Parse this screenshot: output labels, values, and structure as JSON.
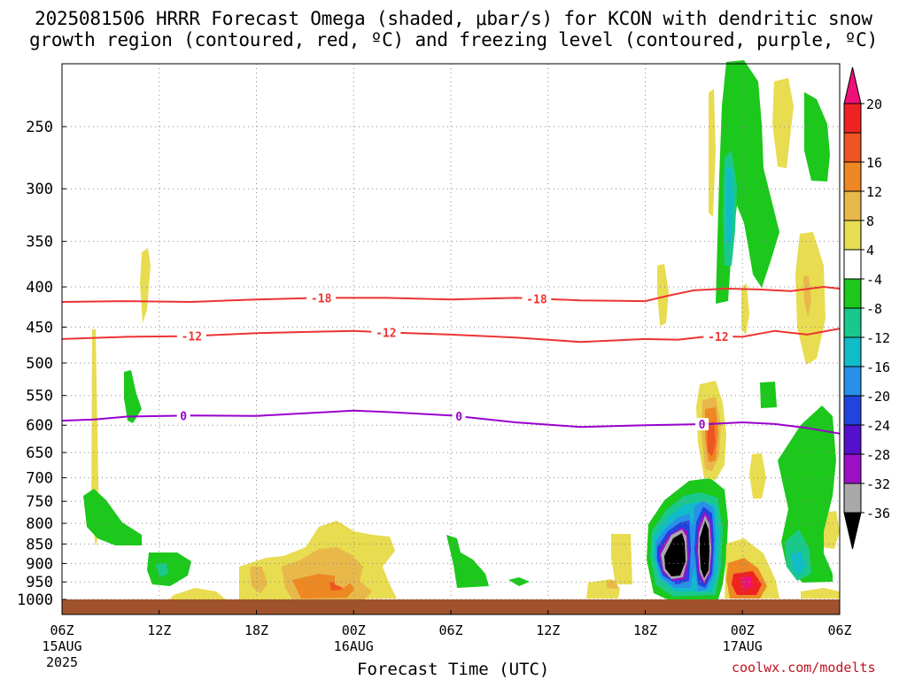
{
  "title": {
    "line1": "2025081506 HRRR Forecast Omega (shaded, μbar/s) for KCON with dendritic snow",
    "line2": "growth region (contoured, red, ºC) and freezing level (contoured, purple, ºC)"
  },
  "xaxis_title": "Forecast Time (UTC)",
  "credit": "coolwx.com/modelts",
  "colors": {
    "dendritic_contour": "#ee3333",
    "freezing_contour": "#9900cc",
    "ground": "#a0522d",
    "grid": "#888888"
  },
  "chart_data": {
    "type": "heatmap",
    "title": "2025081506 HRRR Forecast Omega (shaded, μbar/s) for KCON with dendritic snow growth region (contoured, red, ºC) and freezing level (contoured, purple, ºC)",
    "xlabel": "Forecast Time (UTC)",
    "ylabel": "",
    "x_range_hours": [
      0,
      48
    ],
    "y_range_hpa": [
      1050,
      200
    ],
    "y_scale": "log-pressure",
    "grid": true,
    "x_ticks": [
      {
        "hour": 0,
        "label": "06Z",
        "date": "15AUG",
        "year": "2025"
      },
      {
        "hour": 6,
        "label": "12Z"
      },
      {
        "hour": 12,
        "label": "18Z"
      },
      {
        "hour": 18,
        "label": "00Z",
        "date": "16AUG"
      },
      {
        "hour": 24,
        "label": "06Z"
      },
      {
        "hour": 30,
        "label": "12Z"
      },
      {
        "hour": 36,
        "label": "18Z"
      },
      {
        "hour": 42,
        "label": "00Z",
        "date": "17AUG"
      },
      {
        "hour": 48,
        "label": "06Z"
      }
    ],
    "y_ticks": [
      {
        "p": 250,
        "label": "250"
      },
      {
        "p": 300,
        "label": "300"
      },
      {
        "p": 350,
        "label": "350"
      },
      {
        "p": 400,
        "label": "400"
      },
      {
        "p": 450,
        "label": "450"
      },
      {
        "p": 500,
        "label": "500"
      },
      {
        "p": 550,
        "label": "550"
      },
      {
        "p": 600,
        "label": "600"
      },
      {
        "p": 650,
        "label": "650"
      },
      {
        "p": 700,
        "label": "700"
      },
      {
        "p": 750,
        "label": "750"
      },
      {
        "p": 800,
        "label": "800"
      },
      {
        "p": 850,
        "label": "850"
      },
      {
        "p": 900,
        "label": "900"
      },
      {
        "p": 950,
        "label": "950"
      },
      {
        "p": 1000,
        "label": "1000"
      }
    ],
    "colorbar": {
      "labels": [
        "20",
        "16",
        "12",
        "8",
        "4",
        "-4",
        "-8",
        "-12",
        "-16",
        "-20",
        "-24",
        "-28",
        "-32",
        "-36"
      ],
      "colors": [
        "#ee1177",
        "#ee2222",
        "#ee5522",
        "#ee8822",
        "#e8b84a",
        "#e8dc50",
        "#ffffff",
        "#1bc81b",
        "#1bc88c",
        "#10bcc8",
        "#2890e8",
        "#2244dd",
        "#5510cc",
        "#9c10c8",
        "#a9a9a9",
        "#000000"
      ]
    },
    "series": [
      {
        "name": "-18",
        "type": "contour",
        "x": [
          0,
          4,
          8,
          12,
          16,
          18,
          20,
          24,
          28,
          32,
          36,
          37.5,
          39,
          41,
          43,
          45,
          47,
          48
        ],
        "y": [
          418,
          417,
          418,
          415,
          413,
          413,
          413,
          415,
          413,
          416,
          417,
          410,
          404,
          402,
          403,
          405,
          400,
          402
        ],
        "labels_at_hours": [
          16,
          29.3
        ]
      },
      {
        "name": "-12",
        "type": "contour",
        "x": [
          0,
          4,
          8,
          12,
          16,
          18,
          20,
          24,
          28,
          32,
          36,
          38,
          40,
          42,
          44,
          46,
          48
        ],
        "y": [
          466,
          463,
          462,
          458,
          456,
          455,
          457,
          460,
          464,
          470,
          466,
          467,
          462,
          463,
          455,
          460,
          452
        ],
        "labels_at_hours": [
          8,
          20,
          40.5
        ]
      },
      {
        "name": "0",
        "type": "contour",
        "x": [
          0,
          2,
          4,
          8,
          12,
          16,
          18,
          20,
          24,
          28,
          32,
          36,
          40,
          42,
          44,
          46,
          48
        ],
        "y": [
          592,
          590,
          585,
          583,
          584,
          578,
          575,
          577,
          583,
          595,
          603,
          600,
          598,
          595,
          598,
          605,
          615
        ],
        "labels_at_hours": [
          7.5,
          24.5,
          39.5
        ]
      }
    ],
    "shaded_regions": [
      {
        "value_range": [
          4,
          8
        ],
        "approx": "upper-level yellow streaks near hour 2, 5, 37.5-38, 43-46 and low-level yellow 12-23h"
      },
      {
        "value_range": [
          -8,
          -4
        ],
        "approx": "green upward motion: 1-4h 730-850 hPa, 5-7h 850-970 hPa, 41-43h 200-420 hPa, 44-47h 580-960 hPa"
      },
      {
        "value_range": [
          -40,
          -32
        ],
        "approx": "black cores near 38.5h and 40.3h around 850-930 hPa"
      },
      {
        "value_range": [
          12,
          20
        ],
        "approx": "red cores near 40.5h 580-680 hPa and 42h 950-980 hPa"
      }
    ]
  }
}
